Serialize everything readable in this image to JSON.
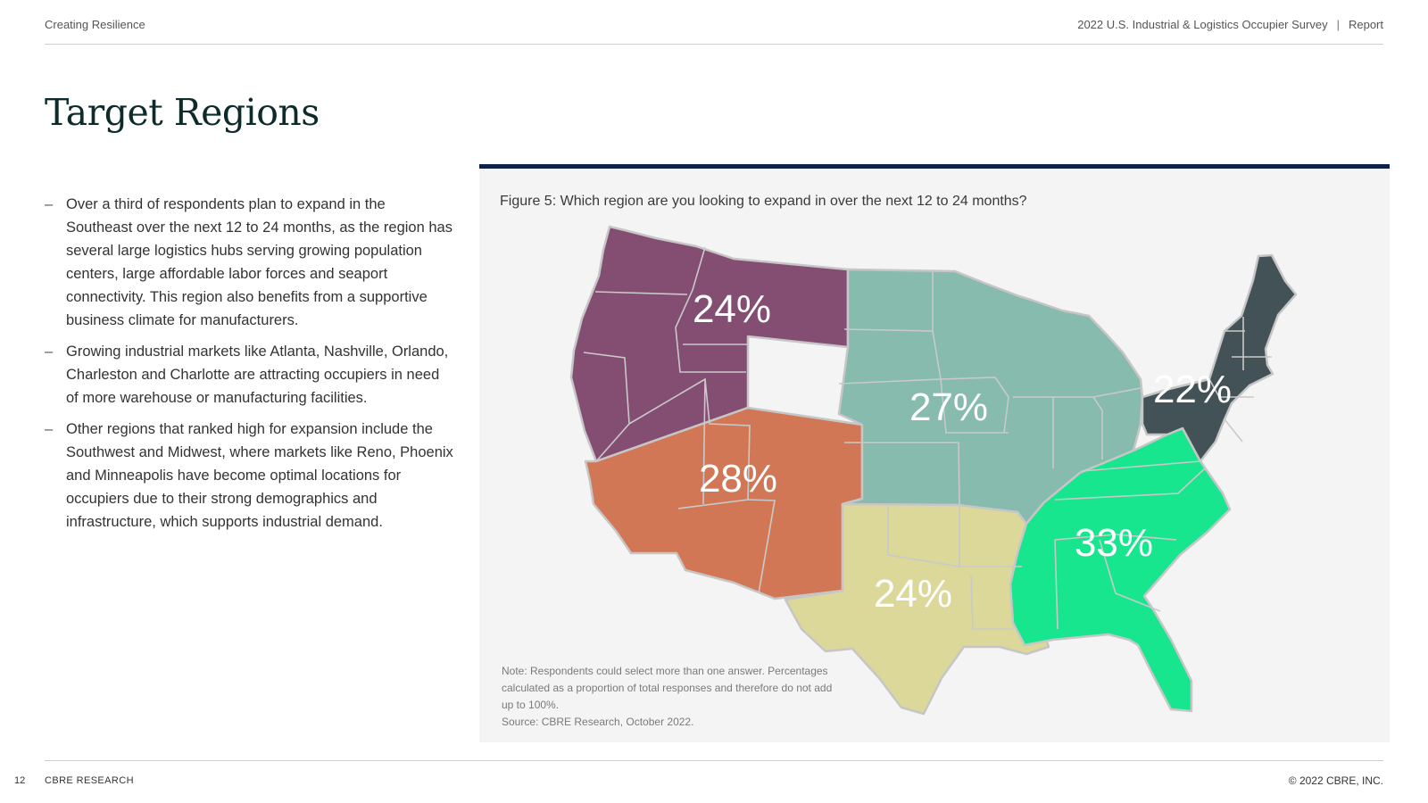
{
  "header": {
    "section": "Creating Resilience",
    "publication": "2022 U.S. Industrial & Logistics Occupier Survey",
    "separator": "|",
    "doc_type": "Report"
  },
  "page_title": "Target Regions",
  "bullets": [
    {
      "dash": "–",
      "text": "Over a third of respondents plan to expand in the Southeast over the next 12 to 24 months, as the region has several large logistics hubs serving growing population centers, large affordable labor forces and seaport connectivity. This region also benefits from a supportive business climate for manufacturers."
    },
    {
      "dash": "–",
      "text": "Growing industrial markets like Atlanta, Nashville, Orlando, Charleston and Charlotte are attracting occupiers in need of more warehouse or manufacturing facilities."
    },
    {
      "dash": "–",
      "text": "Other regions that ranked high for expansion include the Southwest and Midwest, where markets like Reno, Phoenix and Minneapolis have become optimal locations for occupiers  due to their strong demographics and infrastructure, which supports industrial demand."
    }
  ],
  "figure": {
    "caption": "Figure 5: Which region are you looking to expand in over the next 12 to 24 months?",
    "note": "Note: Respondents could select more than one answer. Percentages calculated as a proportion of total responses and therefore do not add up to 100%.",
    "source": "Source: CBRE Research, October 2022."
  },
  "chart_data": {
    "type": "choropleth-map",
    "title": "Figure 5: Which region are you looking to expand in over the next 12 to 24 months?",
    "regions": [
      {
        "name": "Northwest",
        "label": "24%",
        "value": 24,
        "color": "#844e73"
      },
      {
        "name": "Southwest",
        "label": "28%",
        "value": 28,
        "color": "#d27756"
      },
      {
        "name": "Midwest",
        "label": "27%",
        "value": 27,
        "color": "#86bbad"
      },
      {
        "name": "South Central",
        "label": "24%",
        "value": 24,
        "color": "#dbd89a"
      },
      {
        "name": "Southeast",
        "label": "33%",
        "value": 33,
        "color": "#17e68e"
      },
      {
        "name": "Northeast",
        "label": "22%",
        "value": 22,
        "color": "#435257"
      }
    ]
  },
  "footer": {
    "page_number": "12",
    "brand": "CBRE RESEARCH",
    "copyright": "© 2022 CBRE, INC."
  }
}
